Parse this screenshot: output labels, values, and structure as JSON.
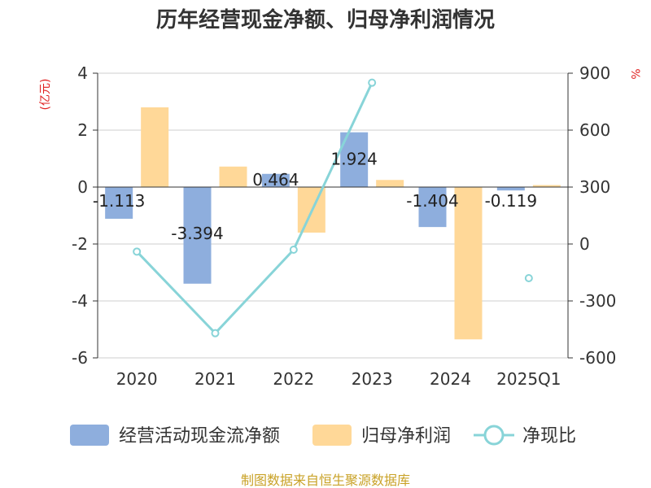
{
  "colors": {
    "bar1": "#8eaedd",
    "bar2": "#ffd898",
    "line": "#88d4d8",
    "unit": "#e02020",
    "source": "#c9a227"
  },
  "chart_data": {
    "type": "bar",
    "title": "历年经营现金净额、归母净利润情况",
    "categories": [
      "2020",
      "2021",
      "2022",
      "2023",
      "2024",
      "2025Q1"
    ],
    "series": [
      {
        "name": "经营活动现金流净额",
        "type": "bar",
        "axis": "left",
        "values": [
          -1.113,
          -3.394,
          0.464,
          1.924,
          -1.404,
          -0.119
        ],
        "labels": [
          "-1.113",
          "-3.394",
          "0.464",
          "1.924",
          "-1.404",
          "-0.119"
        ]
      },
      {
        "name": "归母净利润",
        "type": "bar",
        "axis": "left",
        "values": [
          2.8,
          0.72,
          -1.6,
          0.25,
          -5.35,
          0.07
        ]
      },
      {
        "name": "净现比",
        "type": "line",
        "axis": "right",
        "values": [
          -40,
          -470,
          -30,
          850,
          null,
          -180
        ]
      }
    ],
    "yleft": {
      "label": "(亿元)",
      "ylim": [
        -6,
        4
      ],
      "ticks": [
        4,
        2,
        0,
        -2,
        -4,
        -6
      ],
      "tick_labels": [
        "4",
        "2",
        "0",
        "-2",
        "-4",
        "-6"
      ]
    },
    "yright": {
      "label": "%",
      "ylim": [
        -600,
        900
      ],
      "ticks": [
        900,
        600,
        300,
        0,
        -300,
        -600
      ],
      "tick_labels": [
        "900",
        "600",
        "300",
        "0",
        "-300",
        "-600"
      ]
    },
    "grid": true,
    "legend": "bottom-center",
    "source": "制图数据来自恒生聚源数据库"
  }
}
